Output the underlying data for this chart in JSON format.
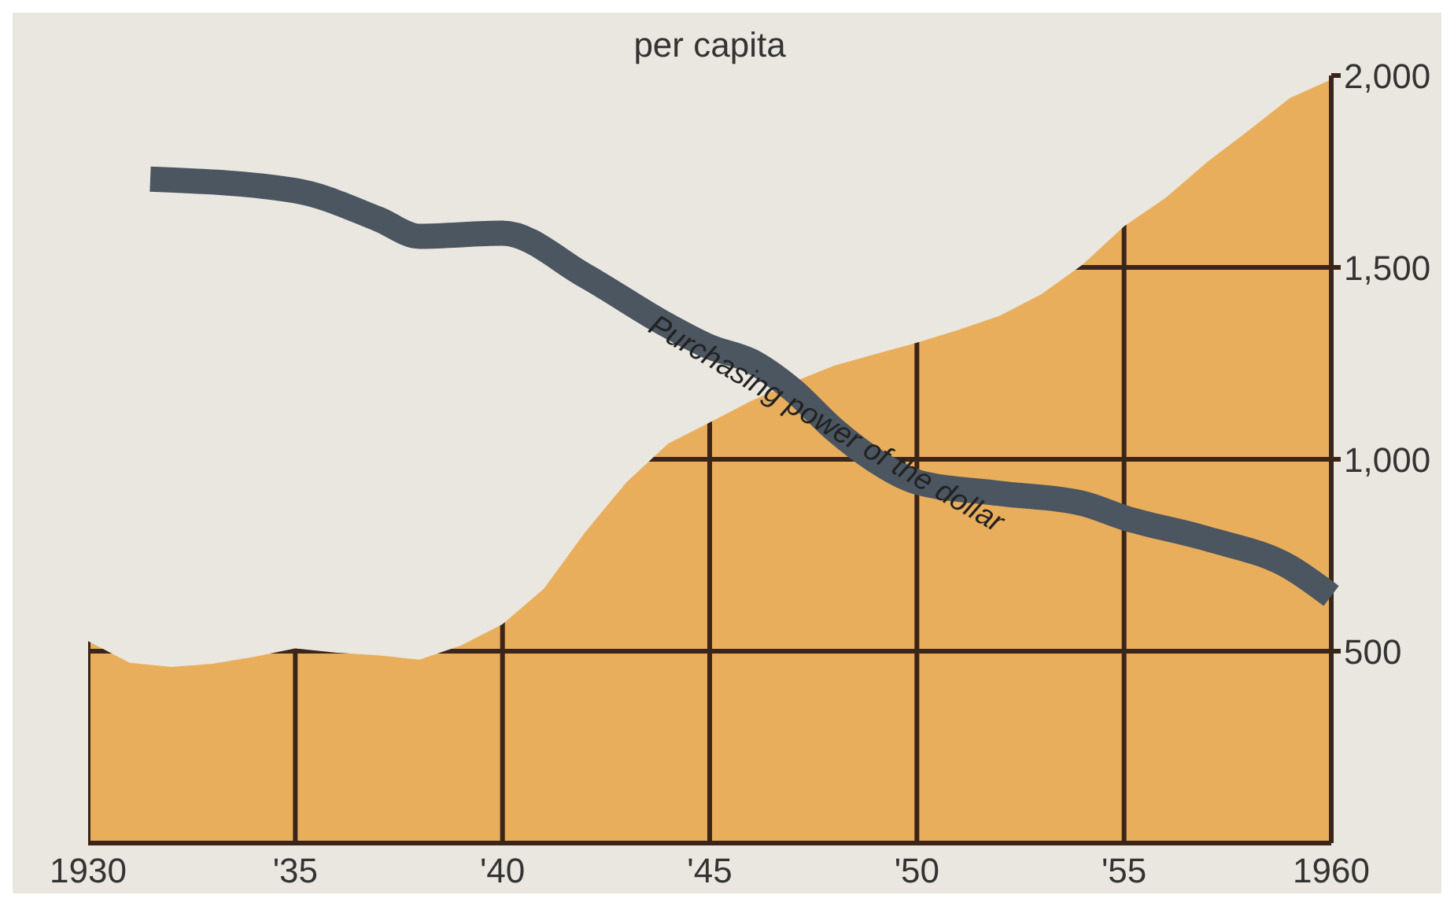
{
  "chart_data": {
    "type": "area",
    "annotations": [
      "per capita"
    ],
    "x": [
      1930,
      1931,
      1932,
      1933,
      1934,
      1935,
      1936,
      1937,
      1938,
      1939,
      1940,
      1941,
      1942,
      1943,
      1944,
      1945,
      1946,
      1947,
      1948,
      1949,
      1950,
      1951,
      1952,
      1953,
      1954,
      1955,
      1956,
      1957,
      1958,
      1959,
      1960
    ],
    "xlim": [
      1930,
      1960
    ],
    "xticks": [
      {
        "value": 1930,
        "label": "1930"
      },
      {
        "value": 1935,
        "label": "'35"
      },
      {
        "value": 1940,
        "label": "'40"
      },
      {
        "value": 1945,
        "label": "'45"
      },
      {
        "value": 1950,
        "label": "'50"
      },
      {
        "value": 1955,
        "label": "'55"
      },
      {
        "value": 1960,
        "label": "1960"
      }
    ],
    "ylim": [
      0,
      2000
    ],
    "yticks": [
      {
        "value": 500,
        "label": "500"
      },
      {
        "value": 1000,
        "label": "1,000"
      },
      {
        "value": 1500,
        "label": "1,500"
      },
      {
        "value": 2000,
        "label": "2,000"
      }
    ],
    "grid": true,
    "series": [
      {
        "color": "#e8ae5c",
        "values": [
          526,
          470,
          459,
          467,
          485,
          507,
          496,
          489,
          478,
          515,
          570,
          663,
          811,
          941,
          1041,
          1096,
          1152,
          1200,
          1244,
          1274,
          1304,
          1337,
          1374,
          1430,
          1507,
          1607,
          1681,
          1774,
          1856,
          1941,
          1990
        ]
      },
      {
        "type": "line",
        "name": "Purchasing power of the dollar",
        "color": "#4b5661",
        "x": [
          1931.5,
          1935,
          1937,
          1938,
          1940,
          1942,
          1944,
          1945,
          1946,
          1947,
          1948,
          1949,
          1950,
          1952,
          1954,
          1955,
          1957,
          1959,
          1960
        ],
        "values": [
          1730,
          1700,
          1626,
          1581,
          1589,
          1478,
          1348,
          1293,
          1256,
          1181,
          1078,
          996,
          941,
          911,
          885,
          848,
          793,
          719,
          644
        ]
      }
    ]
  }
}
